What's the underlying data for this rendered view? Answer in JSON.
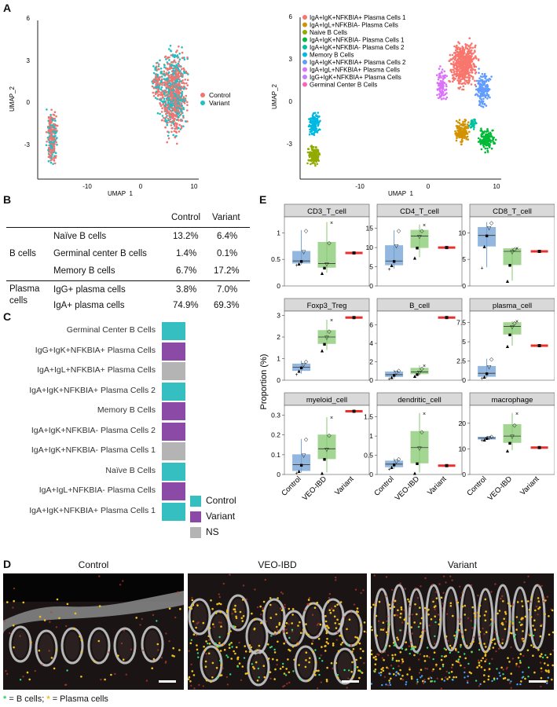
{
  "panels": {
    "A": "A",
    "B": "B",
    "C": "C",
    "D": "D",
    "E": "E"
  },
  "umap_left": {
    "xlabel": "UMAP_1",
    "ylabel": "UMAP_2",
    "xticks": [
      "-10",
      "0",
      "10"
    ],
    "yticks": [
      "6",
      "3",
      "0",
      "-3"
    ],
    "legend": [
      {
        "name": "Control",
        "color": "#f07470"
      },
      {
        "name": "Variant",
        "color": "#1fbfc4"
      }
    ]
  },
  "umap_right": {
    "xlabel": "UMAP_1",
    "ylabel": "UMAP_2",
    "xticks": [
      "-10",
      "0",
      "10"
    ],
    "yticks": [
      "6",
      "3",
      "0",
      "-3"
    ],
    "legend": [
      {
        "name": "IgA+IgK+NFKBIA+ Plasma Cells 1",
        "color": "#f8766d"
      },
      {
        "name": "IgA+IgL+NFKBIA- Plasma Cells",
        "color": "#d39200"
      },
      {
        "name": "Naive B Cells",
        "color": "#93aa00"
      },
      {
        "name": "IgA+IgK+NFKBIA- Plasma Cells 1",
        "color": "#00ba38"
      },
      {
        "name": "IgA+IgK+NFKBIA- Plasma Cells 2",
        "color": "#00c19f"
      },
      {
        "name": "Memory B Cells",
        "color": "#00b9e3"
      },
      {
        "name": "IgA+IgK+NFKBIA+ Plasma Cells 2",
        "color": "#619cff"
      },
      {
        "name": "IgA+IgL+NFKBIA+ Plasma Cells",
        "color": "#db72fb"
      },
      {
        "name": "IgG+IgK+NFKBIA+ Plasma Cells",
        "color": "#c77cff"
      },
      {
        "name": "Germinal Center B Cells",
        "color": "#ff61c3"
      }
    ]
  },
  "table_b": {
    "headers": [
      "Control",
      "Variant"
    ],
    "groups": [
      {
        "name": "B cells",
        "rows": [
          {
            "label": "Naïve B cells",
            "control": "13.2%",
            "variant": "6.4%"
          },
          {
            "label": "Germinal center B cells",
            "control": "1.4%",
            "variant": "0.1%"
          },
          {
            "label": "Memory B cells",
            "control": "6.7%",
            "variant": "17.2%"
          }
        ]
      },
      {
        "name": "Plasma cells",
        "rows": [
          {
            "label": "IgG+ plasma cells",
            "control": "3.8%",
            "variant": "7.0%"
          },
          {
            "label": "IgA+ plasma cells",
            "control": "74.9%",
            "variant": "69.3%"
          }
        ]
      }
    ]
  },
  "panel_c": {
    "rows": [
      {
        "label": "Germinal Center B Cells",
        "status": "Control"
      },
      {
        "label": "IgG+IgK+NFKBIA+ Plasma Cells",
        "status": "Variant"
      },
      {
        "label": "IgA+IgL+NFKBIA+ Plasma Cells",
        "status": "NS"
      },
      {
        "label": "IgA+IgK+NFKBIA+ Plasma Cells 2",
        "status": "Control"
      },
      {
        "label": "Memory B Cells",
        "status": "Variant"
      },
      {
        "label": "IgA+IgK+NFKBIA- Plasma Cells 2",
        "status": "Variant"
      },
      {
        "label": "IgA+IgK+NFKBIA- Plasma Cells 1",
        "status": "NS"
      },
      {
        "label": "Naïve B Cells",
        "status": "Control"
      },
      {
        "label": "IgA+IgL+NFKBIA- Plasma Cells",
        "status": "Variant"
      },
      {
        "label": "IgA+IgK+NFKBIA+ Plasma Cells 1",
        "status": "Control"
      }
    ],
    "legend": [
      {
        "name": "Control",
        "color": "#36bfc1"
      },
      {
        "name": "Variant",
        "color": "#8b4aa5"
      },
      {
        "name": "NS",
        "color": "#b4b4b4"
      }
    ]
  },
  "panel_d": {
    "titles": [
      "Control",
      "VEO-IBD",
      "Variant"
    ],
    "legend_b": "= B cells;",
    "legend_p": "= Plasma cells",
    "star_b_color": "#33cc66",
    "star_p_color": "#e8c020"
  },
  "chart_data": {
    "type": "boxplot",
    "ylabel": "Proportion (%)",
    "groups": [
      "Control",
      "VEO-IBD",
      "Variant"
    ],
    "colors": {
      "Control": "#6fa0d4",
      "VEO-IBD": "#86c970",
      "Variant": "#e8302c"
    },
    "facets": [
      {
        "name": "CD3_T_cell",
        "ylim": [
          0,
          1.3
        ],
        "yticks": [
          0.0,
          0.5,
          1.0
        ],
        "boxes": [
          {
            "min": 0.4,
            "q1": 0.43,
            "median": 0.47,
            "q3": 0.65,
            "max": 1.05
          },
          {
            "min": 0.25,
            "q1": 0.35,
            "median": 0.42,
            "q3": 0.82,
            "max": 1.2
          },
          {
            "value": 0.62
          }
        ]
      },
      {
        "name": "CD4_T_cell",
        "ylim": [
          0,
          18
        ],
        "yticks": [
          0,
          5,
          10,
          15
        ],
        "boxes": [
          {
            "min": 4.5,
            "q1": 5.5,
            "median": 6.5,
            "q3": 10.5,
            "max": 14.5
          },
          {
            "min": 7.5,
            "q1": 10,
            "median": 13,
            "q3": 14.5,
            "max": 16
          },
          {
            "value": 10
          }
        ]
      },
      {
        "name": "CD8_T_cell",
        "ylim": [
          0,
          13
        ],
        "yticks": [
          0,
          5,
          10
        ],
        "boxes": [
          {
            "min": 3.5,
            "q1": 7.5,
            "median": 9.5,
            "q3": 11,
            "max": 12
          },
          {
            "min": 1,
            "q1": 4,
            "median": 6.5,
            "q3": 7,
            "max": 7.2
          },
          {
            "value": 6.5
          }
        ]
      },
      {
        "name": "Foxp3_Treg",
        "ylim": [
          0,
          3.2
        ],
        "yticks": [
          0,
          1,
          2,
          3
        ],
        "boxes": [
          {
            "min": 0.3,
            "q1": 0.45,
            "median": 0.6,
            "q3": 0.75,
            "max": 0.9
          },
          {
            "min": 1.4,
            "q1": 1.7,
            "median": 2.0,
            "q3": 2.3,
            "max": 2.8
          },
          {
            "value": 2.9
          }
        ]
      },
      {
        "name": "B_cell",
        "ylim": [
          0,
          7.5
        ],
        "yticks": [
          0,
          2,
          4,
          6
        ],
        "boxes": [
          {
            "min": 0.2,
            "q1": 0.4,
            "median": 0.6,
            "q3": 0.9,
            "max": 1.1
          },
          {
            "min": 0.5,
            "q1": 0.7,
            "median": 0.9,
            "q3": 1.3,
            "max": 1.6
          },
          {
            "value": 6.8
          }
        ]
      },
      {
        "name": "plasma_cell",
        "ylim": [
          0,
          9
        ],
        "yticks": [
          0.0,
          2.5,
          5.0,
          7.5
        ],
        "boxes": [
          {
            "min": 0.3,
            "q1": 0.5,
            "median": 0.9,
            "q3": 1.8,
            "max": 2.8
          },
          {
            "min": 4.5,
            "q1": 6,
            "median": 7.0,
            "q3": 7.5,
            "max": 7.7
          },
          {
            "value": 4.5
          }
        ]
      },
      {
        "name": "myeloid_cell",
        "ylim": [
          0,
          0.35
        ],
        "yticks": [
          0.0,
          0.1,
          0.2,
          0.3
        ],
        "boxes": [
          {
            "min": 0.01,
            "q1": 0.02,
            "median": 0.05,
            "q3": 0.1,
            "max": 0.18
          },
          {
            "min": 0.01,
            "q1": 0.08,
            "median": 0.13,
            "q3": 0.2,
            "max": 0.29
          },
          {
            "value": 0.32
          }
        ]
      },
      {
        "name": "dendritic_cell",
        "ylim": [
          0,
          1.8
        ],
        "yticks": [
          0.0,
          0.5,
          1.0,
          1.5
        ],
        "boxes": [
          {
            "min": 0.15,
            "q1": 0.2,
            "median": 0.27,
            "q3": 0.35,
            "max": 0.42
          },
          {
            "min": 0.05,
            "q1": 0.3,
            "median": 0.7,
            "q3": 1.12,
            "max": 1.6
          },
          {
            "value": 0.23
          }
        ]
      },
      {
        "name": "macrophage",
        "ylim": [
          0,
          27
        ],
        "yticks": [
          0,
          10,
          20
        ],
        "boxes": [
          {
            "min": 13.5,
            "q1": 13.8,
            "median": 14.2,
            "q3": 14.6,
            "max": 15
          },
          {
            "min": 9.5,
            "q1": 12.5,
            "median": 15,
            "q3": 19.5,
            "max": 24
          },
          {
            "value": 10.5
          }
        ]
      }
    ]
  }
}
